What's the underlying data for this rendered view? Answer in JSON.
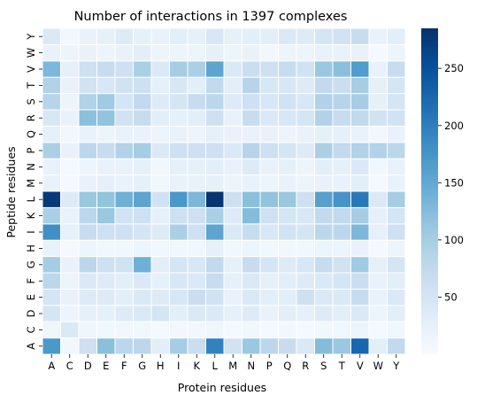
{
  "chart_data": {
    "type": "heatmap",
    "title": "Number of interactions in 1397 complexes",
    "xlabel": "Protein residues",
    "ylabel": "Peptide residues",
    "x": [
      "A",
      "C",
      "D",
      "E",
      "F",
      "G",
      "H",
      "I",
      "K",
      "L",
      "M",
      "N",
      "P",
      "Q",
      "R",
      "S",
      "T",
      "V",
      "W",
      "Y"
    ],
    "y": [
      "A",
      "C",
      "D",
      "E",
      "F",
      "G",
      "H",
      "I",
      "K",
      "L",
      "M",
      "N",
      "P",
      "Q",
      "R",
      "S",
      "T",
      "V",
      "W",
      "Y"
    ],
    "values": [
      [
        170,
        10,
        60,
        120,
        80,
        80,
        30,
        100,
        65,
        195,
        55,
        110,
        80,
        70,
        40,
        125,
        110,
        225,
        30,
        75
      ],
      [
        12,
        40,
        12,
        10,
        8,
        10,
        5,
        8,
        8,
        12,
        5,
        10,
        5,
        8,
        5,
        10,
        10,
        15,
        5,
        10
      ],
      [
        50,
        15,
        25,
        25,
        35,
        40,
        50,
        30,
        40,
        40,
        25,
        35,
        20,
        30,
        25,
        35,
        30,
        40,
        15,
        30
      ],
      [
        50,
        20,
        35,
        35,
        30,
        40,
        35,
        45,
        65,
        55,
        20,
        40,
        30,
        30,
        60,
        40,
        40,
        70,
        20,
        40
      ],
      [
        80,
        15,
        40,
        35,
        30,
        40,
        25,
        45,
        40,
        70,
        25,
        40,
        25,
        30,
        35,
        40,
        50,
        65,
        20,
        30
      ],
      [
        100,
        20,
        80,
        60,
        55,
        140,
        30,
        50,
        45,
        75,
        25,
        70,
        50,
        35,
        45,
        70,
        55,
        105,
        25,
        50
      ],
      [
        20,
        5,
        15,
        10,
        10,
        15,
        10,
        10,
        10,
        25,
        10,
        15,
        10,
        10,
        10,
        15,
        15,
        20,
        5,
        15
      ],
      [
        180,
        25,
        70,
        60,
        60,
        50,
        35,
        95,
        60,
        155,
        40,
        70,
        45,
        55,
        50,
        80,
        80,
        130,
        25,
        60
      ],
      [
        95,
        20,
        80,
        110,
        55,
        60,
        25,
        60,
        60,
        95,
        35,
        125,
        60,
        50,
        45,
        75,
        75,
        100,
        25,
        50
      ],
      [
        275,
        35,
        110,
        115,
        140,
        155,
        55,
        170,
        130,
        280,
        60,
        120,
        115,
        110,
        60,
        160,
        175,
        205,
        40,
        100
      ],
      [
        20,
        5,
        20,
        25,
        20,
        25,
        10,
        20,
        20,
        25,
        15,
        20,
        15,
        20,
        15,
        20,
        20,
        30,
        5,
        20
      ],
      [
        20,
        5,
        15,
        20,
        20,
        25,
        10,
        25,
        25,
        30,
        20,
        35,
        20,
        25,
        15,
        30,
        25,
        40,
        10,
        20
      ],
      [
        95,
        20,
        80,
        70,
        90,
        100,
        40,
        60,
        60,
        60,
        40,
        85,
        60,
        50,
        35,
        95,
        75,
        90,
        90,
        80
      ],
      [
        25,
        10,
        20,
        15,
        20,
        20,
        15,
        20,
        15,
        25,
        20,
        20,
        20,
        15,
        20,
        25,
        25,
        20,
        10,
        20
      ],
      [
        45,
        20,
        120,
        115,
        55,
        70,
        30,
        25,
        30,
        60,
        20,
        70,
        40,
        45,
        50,
        90,
        70,
        75,
        55,
        55
      ],
      [
        85,
        15,
        90,
        105,
        50,
        75,
        35,
        50,
        70,
        80,
        35,
        60,
        45,
        55,
        45,
        90,
        85,
        100,
        25,
        50
      ],
      [
        90,
        20,
        55,
        45,
        55,
        60,
        25,
        45,
        30,
        75,
        30,
        85,
        45,
        45,
        35,
        75,
        65,
        100,
        25,
        50
      ],
      [
        130,
        25,
        60,
        70,
        60,
        95,
        40,
        100,
        95,
        155,
        40,
        65,
        60,
        70,
        55,
        110,
        120,
        165,
        20,
        70
      ],
      [
        20,
        15,
        20,
        15,
        20,
        30,
        15,
        15,
        15,
        25,
        15,
        20,
        10,
        15,
        15,
        20,
        20,
        20,
        5,
        15
      ],
      [
        40,
        10,
        20,
        25,
        35,
        25,
        20,
        30,
        25,
        45,
        25,
        30,
        30,
        40,
        35,
        50,
        55,
        70,
        20,
        30
      ]
    ],
    "colormap": "Blues",
    "vmin": 0,
    "vmax": 285,
    "colorbar_ticks": [
      50,
      100,
      150,
      200,
      250
    ],
    "grid_lines": "white"
  }
}
